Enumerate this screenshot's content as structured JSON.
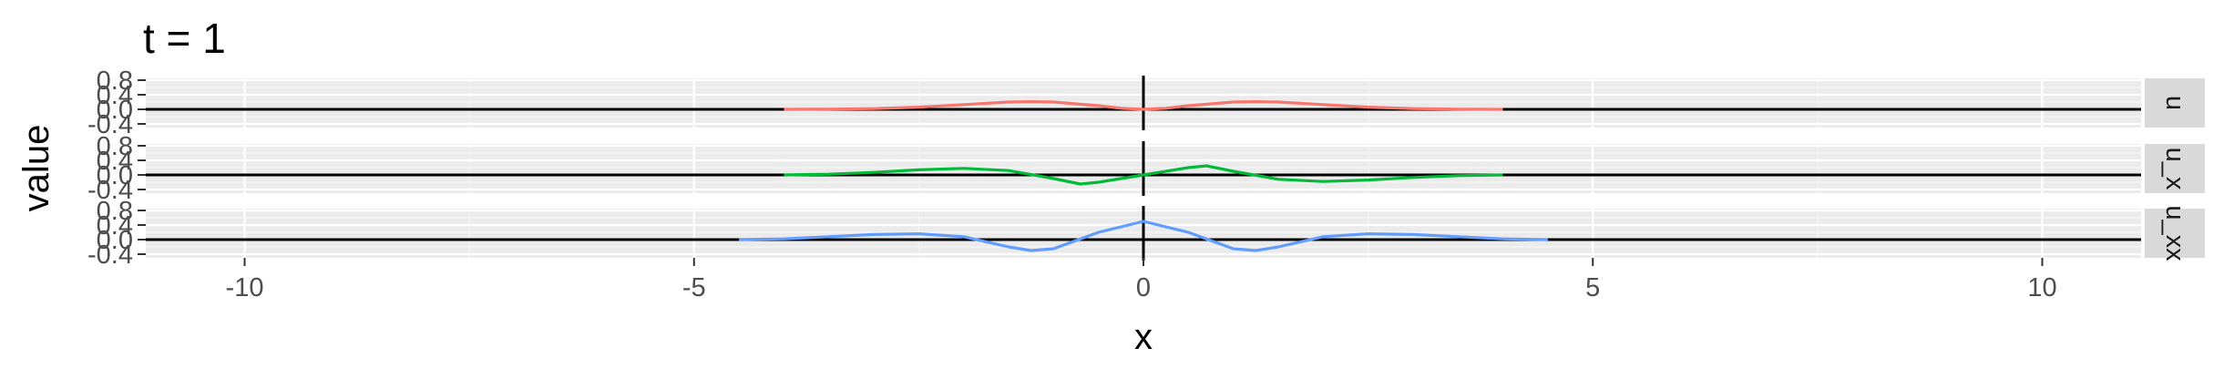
{
  "chart_data": {
    "type": "line",
    "title": "t = 1",
    "xlabel": "x",
    "ylabel": "value",
    "xlim": [
      -11.1,
      11.1
    ],
    "ylim": [
      -0.5,
      0.85
    ],
    "x_ticks": [
      -10,
      -5,
      0,
      5,
      10
    ],
    "y_ticks": [
      -0.4,
      0.0,
      0.4,
      0.8
    ],
    "y_tick_labels": [
      "-0.4",
      "0.0",
      "0.4",
      "0.8"
    ],
    "y_minor_ticks": [
      -0.2,
      0.2,
      0.6
    ],
    "grid": true,
    "reference_lines": {
      "hline_y": 0,
      "vline_x": 0
    },
    "facets": [
      {
        "strip_label": "u",
        "color": "#F8766D",
        "x": [
          -4,
          -3.5,
          -3,
          -2.5,
          -2,
          -1.5,
          -1.25,
          -1,
          -0.5,
          -0.25,
          0,
          0.25,
          0.5,
          1,
          1.25,
          1.5,
          2,
          2.5,
          3,
          3.5,
          4
        ],
        "y": [
          0.0,
          0.005,
          0.02,
          0.06,
          0.13,
          0.2,
          0.21,
          0.2,
          0.1,
          0.03,
          0.0,
          0.03,
          0.1,
          0.2,
          0.21,
          0.2,
          0.13,
          0.06,
          0.02,
          0.005,
          0.0
        ]
      },
      {
        "strip_label": "u_x",
        "color": "#00BA38",
        "x": [
          -4,
          -3.5,
          -3,
          -2.5,
          -2,
          -1.5,
          -1,
          -0.7,
          -0.5,
          0,
          0.5,
          0.7,
          1,
          1.5,
          2,
          2.5,
          3,
          3.5,
          4
        ],
        "y": [
          0.0,
          0.02,
          0.07,
          0.14,
          0.18,
          0.12,
          -0.1,
          -0.25,
          -0.2,
          0.0,
          0.2,
          0.25,
          0.1,
          -0.12,
          -0.18,
          -0.14,
          -0.07,
          -0.02,
          0.0
        ]
      },
      {
        "strip_label": "u_xx",
        "color": "#619CFF",
        "x": [
          -4.5,
          -4,
          -3.5,
          -3,
          -2.5,
          -2,
          -1.5,
          -1.25,
          -1,
          -0.5,
          0,
          0.5,
          1,
          1.25,
          1.5,
          2,
          2.5,
          3,
          3.5,
          4,
          4.5
        ],
        "y": [
          0.0,
          0.02,
          0.08,
          0.14,
          0.16,
          0.08,
          -0.2,
          -0.3,
          -0.25,
          0.2,
          0.5,
          0.2,
          -0.25,
          -0.3,
          -0.2,
          0.08,
          0.16,
          0.14,
          0.08,
          0.02,
          0.0
        ]
      }
    ]
  }
}
